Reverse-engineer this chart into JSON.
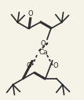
{
  "bg_color": "#f5f3e8",
  "line_color": "#2a2a2a",
  "lw": 1.2,
  "fig_width": 1.07,
  "fig_height": 1.27,
  "dpi": 100,
  "ca_label": "Ca",
  "o_label": "O",
  "ca_fs": 6.5,
  "o_fs": 6.0
}
